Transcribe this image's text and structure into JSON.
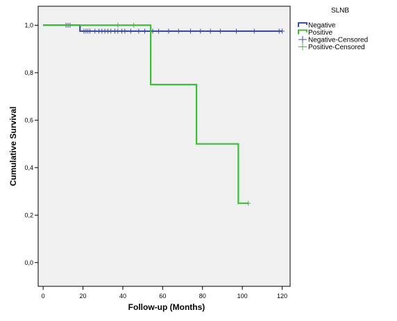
{
  "chart_data": {
    "type": "line",
    "xlabel": "Follow-up (Months)",
    "ylabel": "Cumulative Survival",
    "xlim": [
      -2.5,
      124
    ],
    "ylim": [
      -0.1,
      1.08
    ],
    "x_ticks": [
      0,
      20,
      40,
      60,
      80,
      100,
      120
    ],
    "x_tick_labels": [
      "0",
      "20",
      "40",
      "60",
      "80",
      "100",
      "120"
    ],
    "y_ticks": [
      0.0,
      0.2,
      0.4,
      0.6,
      0.8,
      1.0
    ],
    "y_tick_labels": [
      "0,0",
      "0,2",
      "0,4",
      "0,6",
      "0,8",
      "1,0"
    ],
    "grid": false,
    "background": "#f0f0f0",
    "legend": {
      "title": "SLNB",
      "placement": "right",
      "entries": [
        {
          "label": "Negative",
          "kind": "step",
          "color": "#3c4ea4"
        },
        {
          "label": "Positive",
          "kind": "step",
          "color": "#3cbb3c"
        },
        {
          "label": "Negative-Censored",
          "kind": "censor",
          "color": "#3c4ea4"
        },
        {
          "label": "Positive-Censored",
          "kind": "censor",
          "color": "#3cbb3c"
        }
      ]
    },
    "series": [
      {
        "name": "Negative",
        "color": "#3c4ea4",
        "steps": [
          [
            0,
            1.0
          ],
          [
            18.5,
            1.0
          ],
          [
            18.5,
            0.975
          ],
          [
            120,
            0.975
          ]
        ],
        "censored": [
          [
            11.5,
            1.0
          ],
          [
            12.5,
            1.0
          ],
          [
            13.5,
            1.0
          ],
          [
            20.5,
            0.975
          ],
          [
            21.5,
            0.975
          ],
          [
            22.5,
            0.975
          ],
          [
            23.5,
            0.975
          ],
          [
            26,
            0.975
          ],
          [
            28,
            0.975
          ],
          [
            29.5,
            0.975
          ],
          [
            31,
            0.975
          ],
          [
            32.5,
            0.975
          ],
          [
            34,
            0.975
          ],
          [
            36,
            0.975
          ],
          [
            37.5,
            0.975
          ],
          [
            39.5,
            0.975
          ],
          [
            41,
            0.975
          ],
          [
            44,
            0.975
          ],
          [
            48,
            0.975
          ],
          [
            51,
            0.975
          ],
          [
            55,
            0.975
          ],
          [
            58,
            0.975
          ],
          [
            63,
            0.975
          ],
          [
            68,
            0.975
          ],
          [
            74,
            0.975
          ],
          [
            79,
            0.975
          ],
          [
            84,
            0.975
          ],
          [
            89,
            0.975
          ],
          [
            97,
            0.975
          ],
          [
            106,
            0.975
          ],
          [
            118.5,
            0.975
          ],
          [
            120,
            0.975
          ]
        ]
      },
      {
        "name": "Positive",
        "color": "#3cbb3c",
        "steps": [
          [
            0,
            1.0
          ],
          [
            54,
            1.0
          ],
          [
            54,
            0.75
          ],
          [
            77,
            0.75
          ],
          [
            77,
            0.5
          ],
          [
            98,
            0.5
          ],
          [
            98,
            0.25
          ],
          [
            103,
            0.25
          ]
        ],
        "censored": [
          [
            37.5,
            1.0
          ],
          [
            45.5,
            1.0
          ],
          [
            103,
            0.25
          ]
        ]
      }
    ]
  }
}
